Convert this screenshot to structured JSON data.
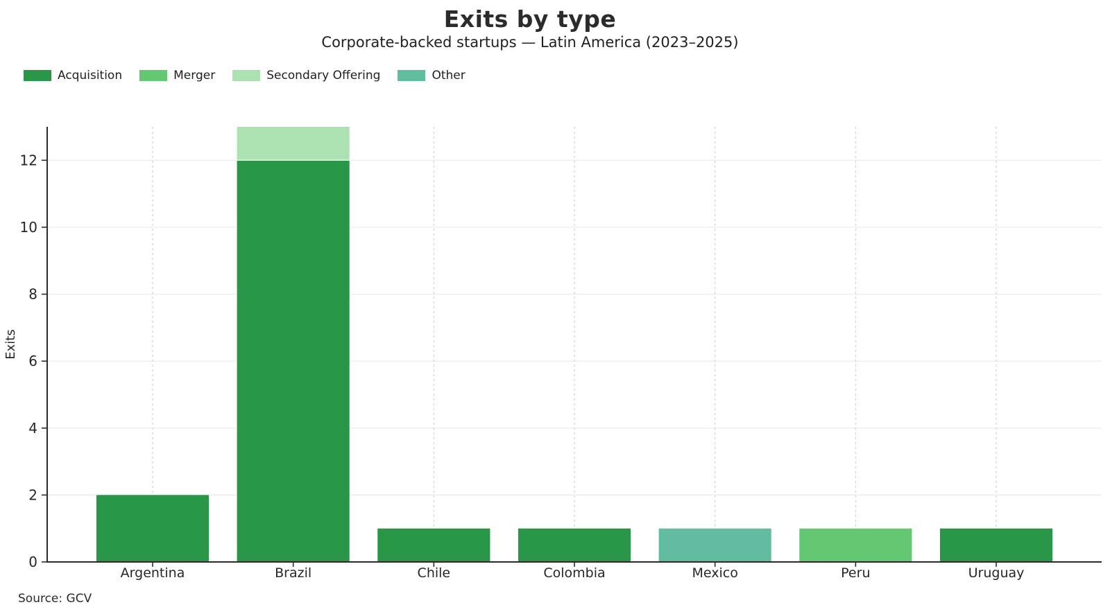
{
  "chart_data": {
    "type": "bar",
    "stacked": true,
    "title": "Exits by type",
    "subtitle": "Corporate-backed startups — Latin America (2023–2025)",
    "xlabel": "",
    "ylabel": "Exits",
    "source": "Source: GCV",
    "categories": [
      "Argentina",
      "Brazil",
      "Chile",
      "Colombia",
      "Mexico",
      "Peru",
      "Uruguay"
    ],
    "series": [
      {
        "name": "Acquisition",
        "color": "#2a9748",
        "values": [
          2,
          12,
          1,
          1,
          0,
          0,
          1
        ]
      },
      {
        "name": "Merger",
        "color": "#64c873",
        "values": [
          0,
          0,
          0,
          0,
          0,
          1,
          0
        ]
      },
      {
        "name": "Secondary Offering",
        "color": "#ace2b2",
        "values": [
          0,
          1,
          0,
          0,
          0,
          0,
          0
        ]
      },
      {
        "name": "Other",
        "color": "#62bda0",
        "values": [
          0,
          0,
          0,
          0,
          1,
          0,
          0
        ]
      }
    ],
    "totals": [
      2,
      13,
      1,
      1,
      1,
      1,
      1
    ],
    "ylim": [
      0,
      13
    ],
    "yticks": [
      0,
      2,
      4,
      6,
      8,
      10,
      12
    ],
    "grid": {
      "horizontal": "solid",
      "vertical": "dashed"
    },
    "legend_position": "top-left",
    "bar_relative_width": 0.8,
    "colors": {
      "axis": "#2b2b2b",
      "grid_h": "#ededed",
      "grid_v": "#d2d2d2",
      "text": "#262626"
    }
  }
}
